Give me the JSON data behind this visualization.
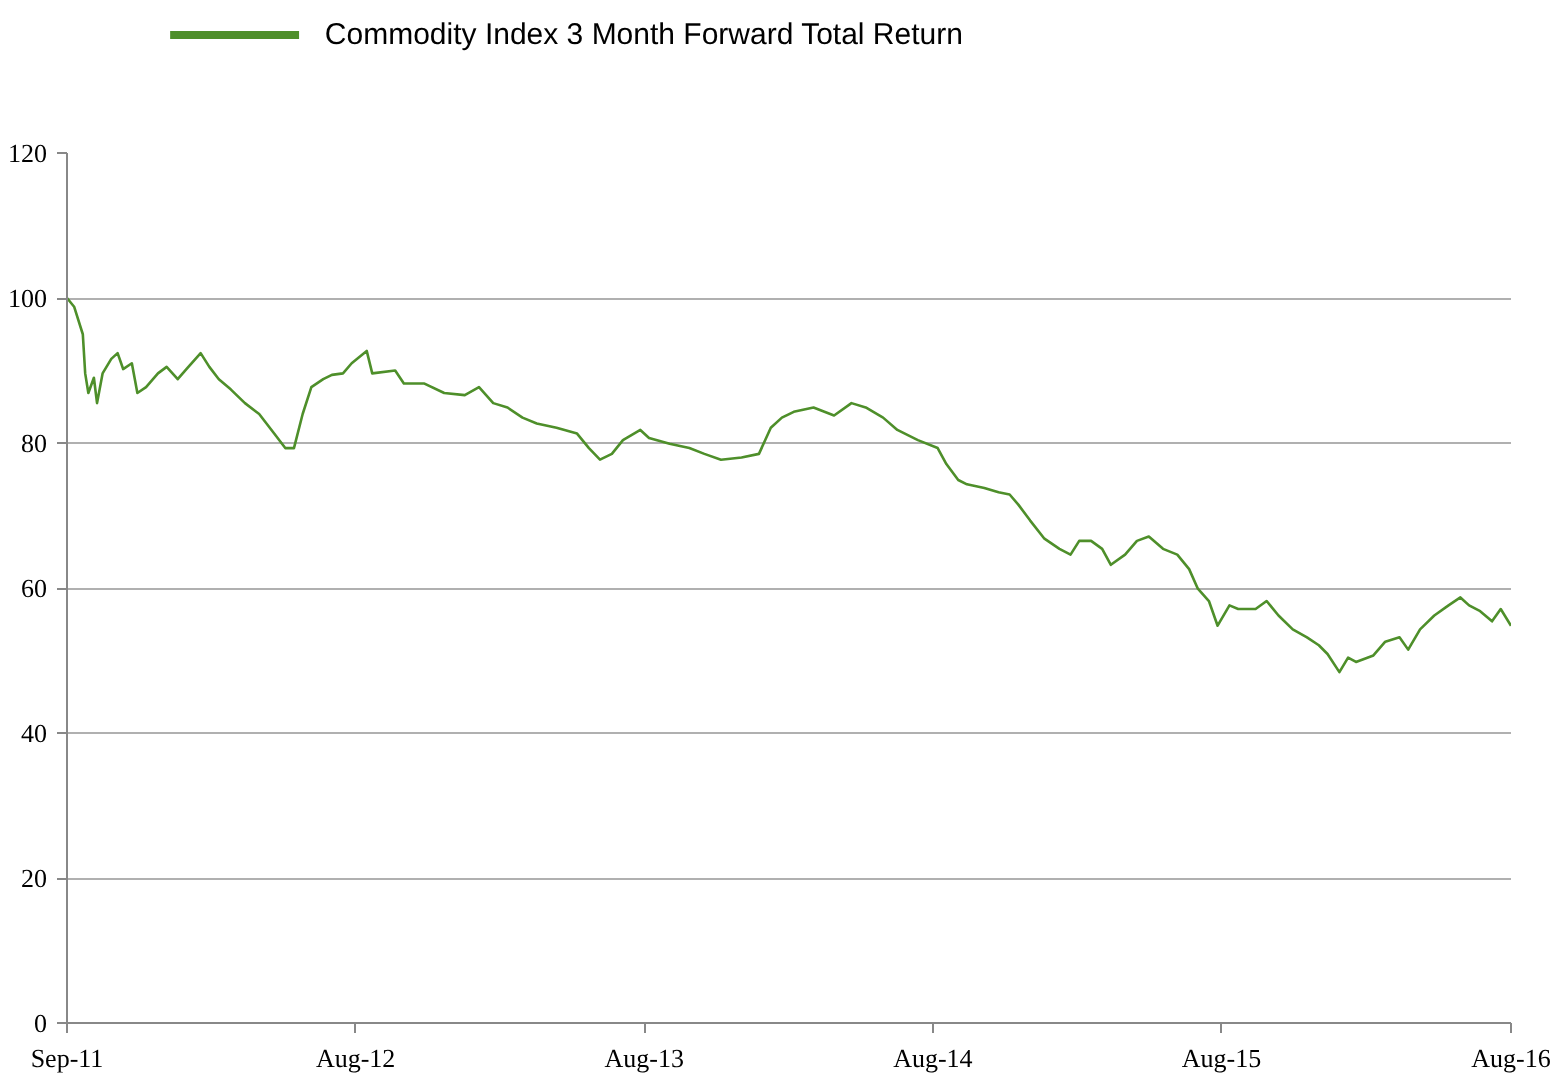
{
  "chart_data": {
    "type": "line",
    "legend": "top left",
    "grid": "y",
    "marker": "none",
    "line_style": "solid",
    "xlim": [
      "2011-09-01",
      "2016-08-31"
    ],
    "xticks": [
      {
        "value": "2011-09-01",
        "label": "Sep-11"
      },
      {
        "value": "2012-08-31",
        "label": "Aug-12"
      },
      {
        "value": "2013-08-31",
        "label": "Aug-13"
      },
      {
        "value": "2014-08-31",
        "label": "Aug-14"
      },
      {
        "value": "2015-08-31",
        "label": "Aug-15"
      },
      {
        "value": "2016-08-31",
        "label": "Aug-16"
      }
    ],
    "ylim": [
      0,
      120
    ],
    "yticks": [
      0,
      20,
      40,
      60,
      80,
      100,
      120
    ],
    "series": [
      {
        "name": "Commodity Index 3 Month Forward Total Return",
        "color": "#4e8f2a",
        "x": [
          "2011-09-01",
          "2011-09-10",
          "2011-09-21",
          "2011-09-24",
          "2011-09-28",
          "2011-10-05",
          "2011-10-09",
          "2011-10-16",
          "2011-10-27",
          "2011-11-04",
          "2011-11-11",
          "2011-11-22",
          "2011-11-29",
          "2011-12-10",
          "2011-12-25",
          "2012-01-05",
          "2012-01-19",
          "2012-01-30",
          "2012-02-17",
          "2012-02-28",
          "2012-03-11",
          "2012-03-26",
          "2012-04-13",
          "2012-05-01",
          "2012-05-20",
          "2012-06-03",
          "2012-06-14",
          "2012-06-25",
          "2012-07-06",
          "2012-07-21",
          "2012-08-01",
          "2012-08-15",
          "2012-08-26",
          "2012-09-14",
          "2012-09-21",
          "2012-10-20",
          "2012-10-31",
          "2012-11-26",
          "2012-12-21",
          "2013-01-16",
          "2013-02-03",
          "2013-02-21",
          "2013-03-11",
          "2013-03-30",
          "2013-04-17",
          "2013-05-12",
          "2013-06-07",
          "2013-06-22",
          "2013-07-06",
          "2013-07-21",
          "2013-08-04",
          "2013-08-26",
          "2013-09-06",
          "2013-10-02",
          "2013-10-27",
          "2013-11-15",
          "2013-12-06",
          "2014-01-01",
          "2014-01-23",
          "2014-02-07",
          "2014-02-21",
          "2014-03-08",
          "2014-04-02",
          "2014-04-28",
          "2014-05-20",
          "2014-06-07",
          "2014-06-29",
          "2014-07-17",
          "2014-08-12",
          "2014-09-06",
          "2014-09-17",
          "2014-10-02",
          "2014-10-13",
          "2014-11-04",
          "2014-11-22",
          "2014-12-06",
          "2014-12-17",
          "2015-01-01",
          "2015-01-19",
          "2015-02-07",
          "2015-02-21",
          "2015-03-04",
          "2015-03-19",
          "2015-04-02",
          "2015-04-13",
          "2015-05-01",
          "2015-05-16",
          "2015-05-31",
          "2015-06-18",
          "2015-07-06",
          "2015-07-21",
          "2015-08-01",
          "2015-08-15",
          "2015-08-26",
          "2015-09-10",
          "2015-09-21",
          "2015-10-13",
          "2015-10-27",
          "2015-11-11",
          "2015-11-29",
          "2015-12-17",
          "2016-01-01",
          "2016-01-12",
          "2016-01-27",
          "2016-02-07",
          "2016-02-17",
          "2016-03-10",
          "2016-03-25",
          "2016-04-12",
          "2016-04-23",
          "2016-05-08",
          "2016-05-26",
          "2016-06-13",
          "2016-06-28",
          "2016-07-09",
          "2016-07-23",
          "2016-08-07",
          "2016-08-18",
          "2016-08-31"
        ],
        "values": [
          100,
          98.8,
          95,
          89.6,
          86.9,
          89,
          85.5,
          89.6,
          91.6,
          92.4,
          90.2,
          91,
          86.9,
          87.7,
          89.6,
          90.5,
          88.8,
          90.2,
          92.4,
          90.5,
          88.8,
          87.4,
          85.5,
          84,
          81.3,
          79.3,
          79.3,
          84,
          87.7,
          88.8,
          89.4,
          89.6,
          91,
          92.7,
          89.6,
          90,
          88.2,
          88.2,
          86.9,
          86.6,
          87.7,
          85.5,
          84.9,
          83.5,
          82.7,
          82.1,
          81.3,
          79.3,
          77.7,
          78.5,
          80.4,
          81.8,
          80.7,
          79.9,
          79.3,
          78.5,
          77.7,
          78,
          78.5,
          82.1,
          83.5,
          84.3,
          84.9,
          83.8,
          85.5,
          84.9,
          83.5,
          81.8,
          80.4,
          79.3,
          77.1,
          74.9,
          74.3,
          73.8,
          73.2,
          72.9,
          71.5,
          69.3,
          66.8,
          65.4,
          64.6,
          66.5,
          66.5,
          65.4,
          63.2,
          64.6,
          66.5,
          67.1,
          65.4,
          64.6,
          62.6,
          59.9,
          58.2,
          54.8,
          57.6,
          57.1,
          57.1,
          58.2,
          56.2,
          54.3,
          53.2,
          52.1,
          50.9,
          48.4,
          50.4,
          49.8,
          50.7,
          52.6,
          53.2,
          51.5,
          54.3,
          56.2,
          57.6,
          58.7,
          57.6,
          56.8,
          55.4,
          57.1,
          54.8
        ]
      }
    ]
  }
}
